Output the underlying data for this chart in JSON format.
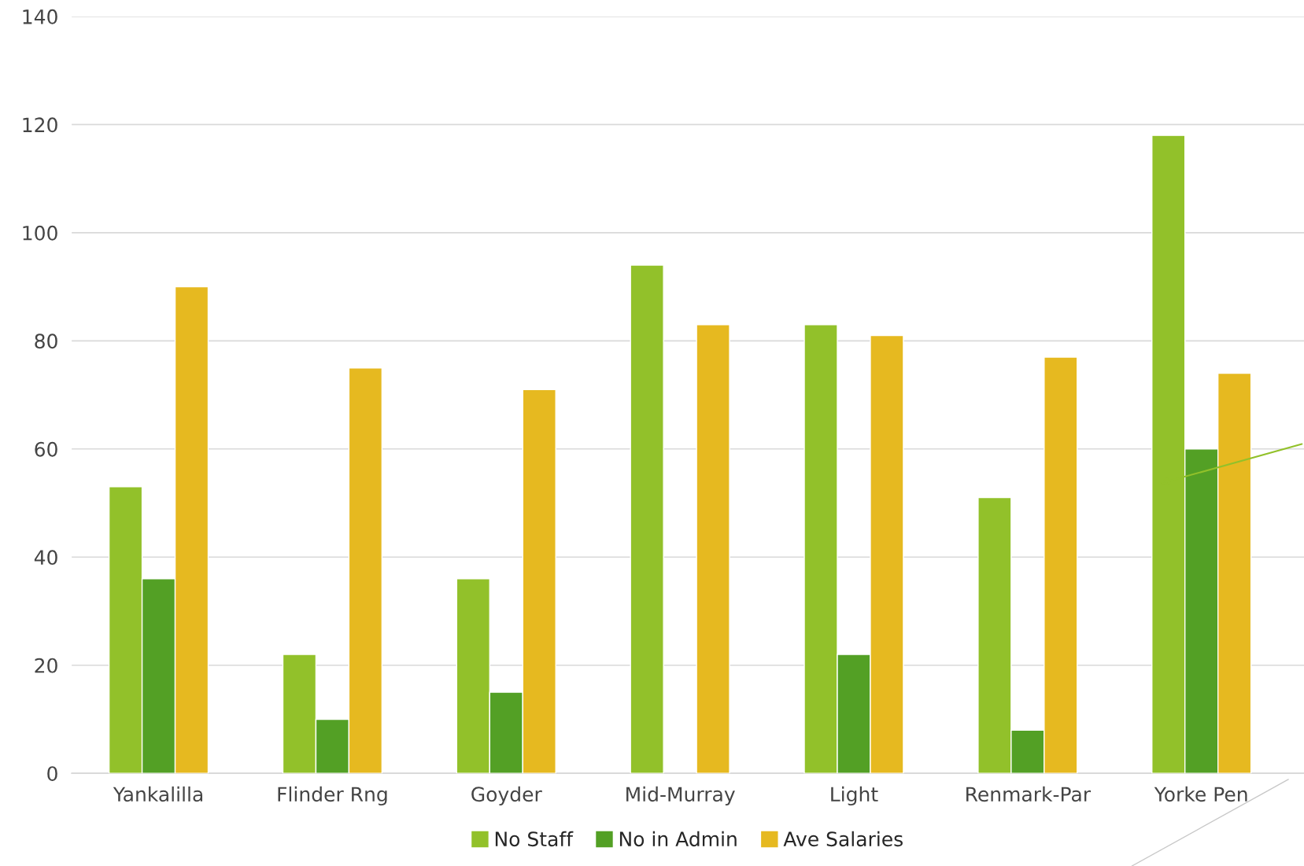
{
  "chart_data": {
    "type": "bar",
    "categories": [
      "Yankalilla",
      "Flinder Rng",
      "Goyder",
      "Mid-Murray",
      "Light",
      "Renmark-Par",
      "Yorke Pen"
    ],
    "series": [
      {
        "name": "No Staff",
        "color": "#92c12a",
        "values": [
          53,
          22,
          36,
          94,
          83,
          51,
          118
        ]
      },
      {
        "name": "No in Admin",
        "color": "#53a025",
        "values": [
          36,
          10,
          15,
          null,
          22,
          8,
          60
        ]
      },
      {
        "name": "Ave Salaries",
        "color": "#e6b920",
        "values": [
          90,
          75,
          71,
          83,
          81,
          77,
          74
        ]
      }
    ],
    "ylim": [
      0,
      140
    ],
    "yticks": [
      0,
      20,
      40,
      60,
      80,
      100,
      120,
      140
    ],
    "grid": "y",
    "legend": "bottom"
  }
}
